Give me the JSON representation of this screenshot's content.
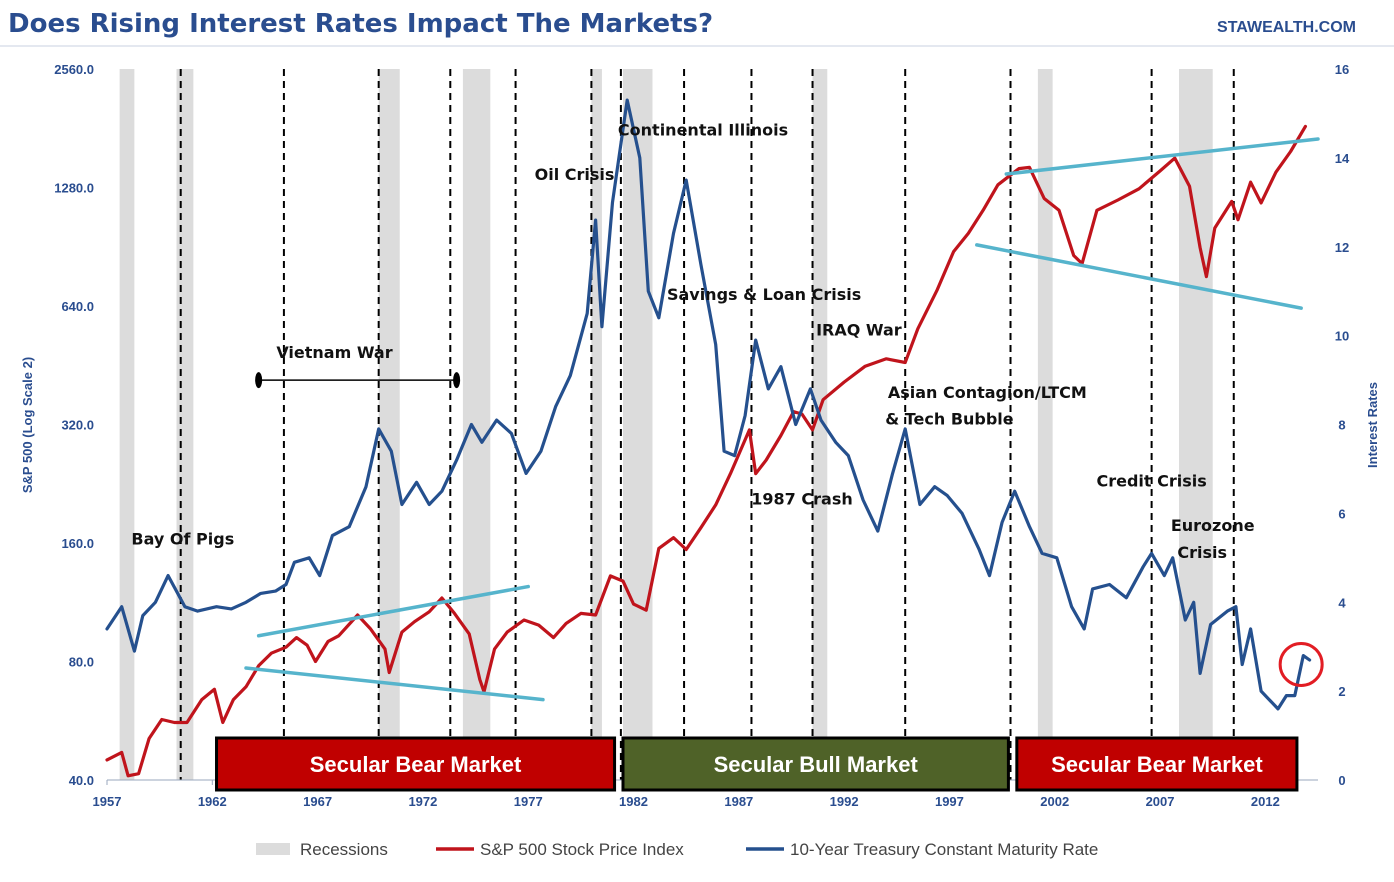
{
  "chart_data": {
    "type": "line",
    "title": "Does Rising Interest Rates Impact The Markets?",
    "source": "STAWEALTH.COM",
    "x_ticks": [
      "1957",
      "1962",
      "1967",
      "1972",
      "1977",
      "1982",
      "1987",
      "1992",
      "1997",
      "2002",
      "2007",
      "2012"
    ],
    "xlim": [
      1957,
      2014.5
    ],
    "ylabel_left": "S&P 500 (Log Scale 2)",
    "ylabel_right": "Interest Rates",
    "y_left_ticks": [
      "2560.0",
      "1280.0",
      "640.0",
      "320.0",
      "160.0",
      "80.0",
      "40.0"
    ],
    "y_left_scale": "log2",
    "ylim_left": [
      40,
      2560
    ],
    "y_right_ticks": [
      "16",
      "14",
      "12",
      "10",
      "8",
      "6",
      "4",
      "2",
      "0"
    ],
    "ylim_right": [
      0,
      16
    ],
    "colors": {
      "title": "#2a4d8f",
      "sp500": "#c0141c",
      "treasury": "#25508e",
      "recession": "#dcdcdc",
      "trendline": "#56b4cc",
      "bear_fill": "#c00000",
      "bull_fill": "#4f6228",
      "circle": "#e21d24"
    },
    "recessions": [
      [
        1957.6,
        1958.3
      ],
      [
        1960.3,
        1961.1
      ],
      [
        1969.9,
        1970.9
      ],
      [
        1973.9,
        1975.2
      ],
      [
        1980.0,
        1980.5
      ],
      [
        1981.5,
        1982.9
      ],
      [
        1990.5,
        1991.2
      ],
      [
        2001.2,
        2001.9
      ],
      [
        2007.9,
        2009.5
      ]
    ],
    "event_lines": [
      1960.5,
      1965.4,
      1969.9,
      1973.3,
      1976.4,
      1980.0,
      1981.4,
      1984.4,
      1987.6,
      1990.5,
      1994.9,
      1999.9,
      2006.6,
      2010.5
    ],
    "series": [
      {
        "name": "S&P 500 Stock Price Index",
        "axis": "left",
        "points": [
          [
            1957.0,
            45
          ],
          [
            1957.7,
            47
          ],
          [
            1958.0,
            41
          ],
          [
            1958.5,
            41.5
          ],
          [
            1959.0,
            51
          ],
          [
            1959.6,
            57
          ],
          [
            1960.2,
            56
          ],
          [
            1960.8,
            56
          ],
          [
            1961.5,
            64
          ],
          [
            1962.1,
            68
          ],
          [
            1962.5,
            56
          ],
          [
            1963.0,
            64
          ],
          [
            1963.6,
            69
          ],
          [
            1964.2,
            78
          ],
          [
            1964.8,
            84
          ],
          [
            1965.5,
            87
          ],
          [
            1966.0,
            92
          ],
          [
            1966.5,
            88
          ],
          [
            1966.9,
            80
          ],
          [
            1967.5,
            90
          ],
          [
            1968.0,
            93
          ],
          [
            1968.9,
            105
          ],
          [
            1969.5,
            97
          ],
          [
            1970.2,
            86
          ],
          [
            1970.4,
            75
          ],
          [
            1971.0,
            95
          ],
          [
            1971.6,
            101
          ],
          [
            1972.3,
            107
          ],
          [
            1972.9,
            116
          ],
          [
            1973.5,
            106
          ],
          [
            1974.2,
            94
          ],
          [
            1974.7,
            72
          ],
          [
            1974.9,
            67
          ],
          [
            1975.4,
            86
          ],
          [
            1976.0,
            95
          ],
          [
            1976.8,
            102
          ],
          [
            1977.5,
            99
          ],
          [
            1978.2,
            92
          ],
          [
            1978.8,
            100
          ],
          [
            1979.5,
            106
          ],
          [
            1980.2,
            105
          ],
          [
            1980.9,
            132
          ],
          [
            1981.5,
            128
          ],
          [
            1982.0,
            112
          ],
          [
            1982.6,
            108
          ],
          [
            1983.2,
            155
          ],
          [
            1983.9,
            165
          ],
          [
            1984.5,
            154
          ],
          [
            1985.2,
            175
          ],
          [
            1985.9,
            200
          ],
          [
            1986.6,
            240
          ],
          [
            1987.5,
            310
          ],
          [
            1987.8,
            240
          ],
          [
            1988.3,
            260
          ],
          [
            1989.0,
            300
          ],
          [
            1989.6,
            345
          ],
          [
            1990.0,
            340
          ],
          [
            1990.5,
            310
          ],
          [
            1991.0,
            370
          ],
          [
            1992.0,
            410
          ],
          [
            1993.0,
            450
          ],
          [
            1994.0,
            470
          ],
          [
            1994.9,
            460
          ],
          [
            1995.5,
            560
          ],
          [
            1996.4,
            700
          ],
          [
            1997.2,
            880
          ],
          [
            1997.9,
            980
          ],
          [
            1998.6,
            1120
          ],
          [
            1999.3,
            1300
          ],
          [
            2000.3,
            1430
          ],
          [
            2000.8,
            1440
          ],
          [
            2001.5,
            1200
          ],
          [
            2002.2,
            1120
          ],
          [
            2002.9,
            860
          ],
          [
            2003.3,
            820
          ],
          [
            2004.0,
            1120
          ],
          [
            2005.0,
            1190
          ],
          [
            2006.0,
            1270
          ],
          [
            2007.0,
            1410
          ],
          [
            2007.7,
            1520
          ],
          [
            2008.4,
            1290
          ],
          [
            2008.9,
            900
          ],
          [
            2009.2,
            760
          ],
          [
            2009.6,
            1010
          ],
          [
            2010.4,
            1180
          ],
          [
            2010.7,
            1060
          ],
          [
            2011.3,
            1320
          ],
          [
            2011.8,
            1170
          ],
          [
            2012.5,
            1400
          ],
          [
            2013.2,
            1580
          ],
          [
            2013.9,
            1830
          ]
        ]
      },
      {
        "name": "10-Year Treasury Constant Maturity Rate",
        "axis": "right",
        "points": [
          [
            1957.0,
            3.4
          ],
          [
            1957.7,
            3.9
          ],
          [
            1958.3,
            2.9
          ],
          [
            1958.7,
            3.7
          ],
          [
            1959.3,
            4.0
          ],
          [
            1959.9,
            4.6
          ],
          [
            1960.7,
            3.9
          ],
          [
            1961.3,
            3.8
          ],
          [
            1962.2,
            3.9
          ],
          [
            1962.9,
            3.85
          ],
          [
            1963.6,
            4.0
          ],
          [
            1964.3,
            4.2
          ],
          [
            1965.0,
            4.25
          ],
          [
            1965.5,
            4.4
          ],
          [
            1965.9,
            4.9
          ],
          [
            1966.6,
            5.0
          ],
          [
            1967.1,
            4.6
          ],
          [
            1967.7,
            5.5
          ],
          [
            1968.5,
            5.7
          ],
          [
            1969.3,
            6.6
          ],
          [
            1969.9,
            7.9
          ],
          [
            1970.5,
            7.4
          ],
          [
            1971.0,
            6.2
          ],
          [
            1971.7,
            6.7
          ],
          [
            1972.3,
            6.2
          ],
          [
            1972.9,
            6.5
          ],
          [
            1973.6,
            7.2
          ],
          [
            1974.3,
            8.0
          ],
          [
            1974.8,
            7.6
          ],
          [
            1975.5,
            8.1
          ],
          [
            1976.2,
            7.8
          ],
          [
            1976.9,
            6.9
          ],
          [
            1977.6,
            7.4
          ],
          [
            1978.3,
            8.4
          ],
          [
            1979.0,
            9.1
          ],
          [
            1979.8,
            10.5
          ],
          [
            1980.2,
            12.6
          ],
          [
            1980.5,
            10.2
          ],
          [
            1981.0,
            13.0
          ],
          [
            1981.7,
            15.3
          ],
          [
            1982.3,
            14.0
          ],
          [
            1982.7,
            11.0
          ],
          [
            1983.2,
            10.4
          ],
          [
            1983.9,
            12.3
          ],
          [
            1984.5,
            13.5
          ],
          [
            1985.2,
            11.6
          ],
          [
            1985.9,
            9.8
          ],
          [
            1986.3,
            7.4
          ],
          [
            1986.8,
            7.3
          ],
          [
            1987.3,
            8.2
          ],
          [
            1987.8,
            9.9
          ],
          [
            1988.4,
            8.8
          ],
          [
            1989.0,
            9.3
          ],
          [
            1989.7,
            8.0
          ],
          [
            1990.4,
            8.8
          ],
          [
            1990.9,
            8.1
          ],
          [
            1991.6,
            7.6
          ],
          [
            1992.2,
            7.3
          ],
          [
            1992.9,
            6.3
          ],
          [
            1993.6,
            5.6
          ],
          [
            1994.3,
            6.9
          ],
          [
            1994.9,
            7.9
          ],
          [
            1995.6,
            6.2
          ],
          [
            1996.3,
            6.6
          ],
          [
            1996.9,
            6.4
          ],
          [
            1997.6,
            6.0
          ],
          [
            1998.4,
            5.2
          ],
          [
            1998.9,
            4.6
          ],
          [
            1999.5,
            5.8
          ],
          [
            2000.1,
            6.5
          ],
          [
            2000.8,
            5.7
          ],
          [
            2001.4,
            5.1
          ],
          [
            2002.1,
            5.0
          ],
          [
            2002.8,
            3.9
          ],
          [
            2003.4,
            3.4
          ],
          [
            2003.8,
            4.3
          ],
          [
            2004.6,
            4.4
          ],
          [
            2005.4,
            4.1
          ],
          [
            2006.2,
            4.8
          ],
          [
            2006.6,
            5.1
          ],
          [
            2007.2,
            4.6
          ],
          [
            2007.6,
            5.0
          ],
          [
            2008.2,
            3.6
          ],
          [
            2008.6,
            4.0
          ],
          [
            2008.9,
            2.4
          ],
          [
            2009.4,
            3.5
          ],
          [
            2010.2,
            3.8
          ],
          [
            2010.6,
            3.9
          ],
          [
            2010.9,
            2.6
          ],
          [
            2011.3,
            3.4
          ],
          [
            2011.8,
            2.0
          ],
          [
            2012.6,
            1.6
          ],
          [
            2013.0,
            1.9
          ],
          [
            2013.4,
            1.9
          ],
          [
            2013.8,
            2.8
          ],
          [
            2014.1,
            2.7
          ]
        ]
      }
    ],
    "events": [
      {
        "label": "Bay Of Pigs",
        "x": 1960.6,
        "y_rate": 5.3
      },
      {
        "label": "Vietnam War",
        "x": 1967.8,
        "y_rate": 9.5
      },
      {
        "label": "Oil Crisis",
        "x": 1979.2,
        "y_rate": 13.5
      },
      {
        "label": "Continental Illinois",
        "x": 1985.3,
        "y_rate": 14.5
      },
      {
        "label": "Savings & Loan Crisis",
        "x": 1988.2,
        "y_rate": 10.8
      },
      {
        "label": "IRAQ War",
        "x": 1992.7,
        "y_rate": 10.0
      },
      {
        "label": "Asian Contagion/LTCM",
        "x": 1998.8,
        "y_rate": 8.6
      },
      {
        "label": "& Tech Bubble",
        "x": 1997.0,
        "y_rate": 8.0
      },
      {
        "label": "1987 Crash",
        "x": 1990.0,
        "y_rate": 6.2
      },
      {
        "label": "Credit Crisis",
        "x": 2006.6,
        "y_rate": 6.6
      },
      {
        "label": "Eurozone",
        "x": 2009.5,
        "y_rate": 5.6
      },
      {
        "label": "Crisis",
        "x": 2009.0,
        "y_rate": 5.0
      }
    ],
    "vietnam_war_span": [
      1964.2,
      1973.6
    ],
    "trendlines": [
      {
        "axis": "left",
        "from": [
          1964.2,
          93
        ],
        "to": [
          1977.0,
          124
        ]
      },
      {
        "axis": "left",
        "from": [
          1963.6,
          77
        ],
        "to": [
          1977.7,
          64
        ]
      },
      {
        "axis": "left",
        "from": [
          1999.7,
          1385
        ],
        "to": [
          2014.5,
          1700
        ]
      },
      {
        "axis": "left",
        "from": [
          1998.3,
          915
        ],
        "to": [
          2013.7,
          632
        ]
      }
    ],
    "eras": [
      {
        "label": "Secular Bear Market",
        "from": 1962.2,
        "to": 1981.1,
        "type": "bear"
      },
      {
        "label": "Secular Bull Market",
        "from": 1981.5,
        "to": 1999.8,
        "type": "bull"
      },
      {
        "label": "Secular Bear Market",
        "from": 2000.2,
        "to": 2013.5,
        "type": "bear"
      }
    ],
    "highlight": {
      "x": 2013.7,
      "y_rate": 2.6
    },
    "legend": [
      {
        "label": "Recessions",
        "kind": "recession"
      },
      {
        "label": "S&P 500 Stock Price Index",
        "kind": "sp500"
      },
      {
        "label": "10-Year Treasury Constant Maturity Rate",
        "kind": "treasury"
      }
    ]
  }
}
